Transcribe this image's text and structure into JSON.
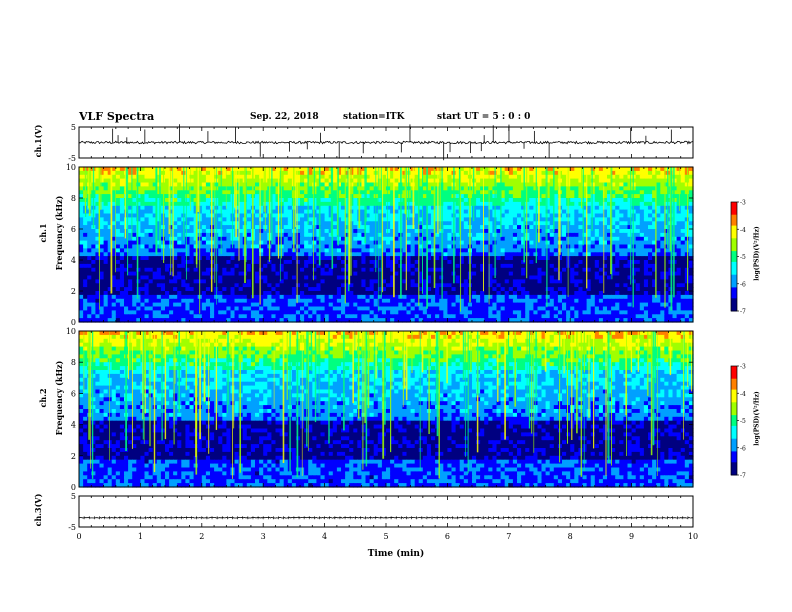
{
  "header": {
    "title": "VLF Spectra",
    "date": "Sep. 22, 2018",
    "station": "station=ITK",
    "start": "start UT = 5 : 0 : 0"
  },
  "chart_data": {
    "type": "heatmap",
    "xlabel": "Time (min)",
    "xlim": [
      0,
      10
    ],
    "x_ticks": [
      "0",
      "1",
      "2",
      "3",
      "4",
      "5",
      "6",
      "7",
      "8",
      "9",
      "10"
    ],
    "panels": [
      {
        "name": "ch.1(V)",
        "type": "line",
        "ylim": [
          -5,
          5
        ],
        "y_ticks": [
          "5",
          "-5"
        ],
        "baseline": 0
      },
      {
        "name": "ch.1",
        "ylabel": "Frequency (kHz)",
        "type": "heatmap",
        "ylim": [
          0,
          10
        ],
        "y_ticks": [
          "0",
          "2",
          "4",
          "6",
          "8",
          "10"
        ]
      },
      {
        "name": "ch.2",
        "ylabel": "Frequency (kHz)",
        "type": "heatmap",
        "ylim": [
          0,
          10
        ],
        "y_ticks": [
          "0",
          "2",
          "4",
          "6",
          "8",
          "10"
        ]
      },
      {
        "name": "ch.3(V)",
        "type": "line",
        "ylim": [
          -5,
          5
        ],
        "y_ticks": [
          "5",
          "-5"
        ],
        "baseline": -2
      }
    ],
    "colorbar": {
      "label": "log(PSD)(V²/Hz)",
      "range": [
        -7,
        -3
      ],
      "ticks": [
        "-3",
        "-4",
        "-5",
        "-6",
        "-7"
      ]
    },
    "colors": [
      "#000080",
      "#0000ff",
      "#00a0ff",
      "#00ffff",
      "#00ff80",
      "#a0ff00",
      "#ffff00",
      "#ff8000",
      "#ff0000",
      "#ffffff"
    ]
  }
}
